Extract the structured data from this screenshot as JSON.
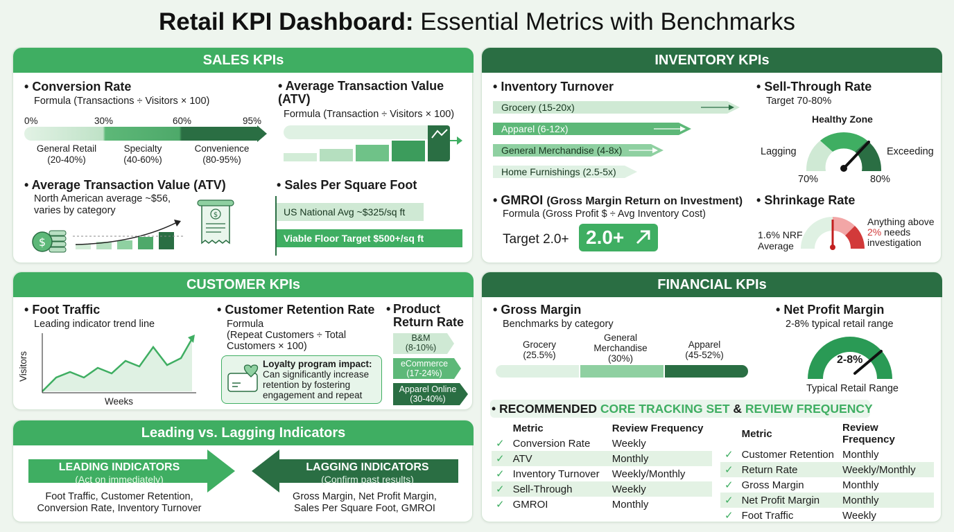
{
  "title": {
    "bold": "Retail KPI Dashboard:",
    "rest": "Essential Metrics with Benchmarks"
  },
  "sales": {
    "header": "SALES KPIs",
    "conversion": {
      "title": "Conversion Rate",
      "formula": "Formula (Transactions ÷ Visitors × 100)",
      "ticks": [
        "0%",
        "30%",
        "60%",
        "95%"
      ],
      "labels": [
        "General Retail\n(20-40%)",
        "Specialty\n(40-60%)",
        "Convenience\n(80-95%)"
      ]
    },
    "atv_formula": {
      "title": "Average Transaction Value (ATV)",
      "formula": "Formula (Transaction ÷ Visitors × 100)"
    },
    "atv": {
      "title": "Average Transaction Value (ATV)",
      "desc": "North American average ~$56, varies by category"
    },
    "spsf": {
      "title": "Sales Per Square Foot",
      "national": "US National Avg ~$325/sq ft",
      "viable": "Viable Floor Target $500+/sq ft"
    }
  },
  "inventory": {
    "header": "INVENTORY KPIs",
    "turnover": {
      "title": "Inventory Turnover",
      "items": [
        "Grocery (15-20x)",
        "Apparel (6-12x)",
        "General Merchandise (4-8x)",
        "Home Furnishings (2.5-5x)"
      ]
    },
    "sellthrough": {
      "title": "Sell-Through Rate",
      "target": "Target 70-80%",
      "zone": "Healthy Zone",
      "lagging": "Lagging",
      "exceeding": "Exceeding",
      "low": "70%",
      "high": "80%"
    },
    "gmroi": {
      "title": "GMROI",
      "title_rest": "(Gross Margin Return on Investment)",
      "formula": "Formula (Gross Profit $ ÷ Avg Inventory Cost)",
      "target": "Target 2.0+",
      "badge": "2.0+"
    },
    "shrinkage": {
      "title": "Shrinkage Rate",
      "left": "1.6% NRF\nAverage",
      "right_a": "Anything above",
      "right_b": "2%",
      "right_c": " needs\ninvestigation"
    }
  },
  "customer": {
    "header": "CUSTOMER KPIs",
    "foot": {
      "title": "Foot Traffic",
      "desc": "Leading indicator trend line",
      "ylabel": "Visitors",
      "xlabel": "Weeks"
    },
    "retention": {
      "title": "Customer Retention Rate",
      "formula": "Formula\n(Repeat Customers ÷ Total\nCustomers × 100)",
      "loyalty_title": "Loyalty program impact:",
      "loyalty_text": "Can significantly increase\nretention by fostering\nengagement and repeat"
    },
    "returns": {
      "title": "Product\nReturn Rate",
      "items": [
        "B&M\n(8-10%)",
        "eCommerce\n(17-24%)",
        "Apparel Online\n(30-40%)"
      ]
    }
  },
  "indicators": {
    "header": "Leading vs. Lagging Indicators",
    "leading_title": "LEADING INDICATORS",
    "leading_sub": "(Act on immediately)",
    "leading_list": "Foot Traffic, Customer Retention,\nConversion Rate, Inventory Turnover",
    "lagging_title": "LAGGING INDICATORS",
    "lagging_sub": "(Confirm past results)",
    "lagging_list": "Gross Margin, Net Profit Margin,\nSales Per Square Foot, GMROI"
  },
  "financial": {
    "header": "FINANCIAL KPIs",
    "gross": {
      "title": "Gross Margin",
      "desc": "Benchmarks by category",
      "labels": [
        "Grocery\n(25.5%)",
        "General\nMerchandise\n(30%)",
        "Apparel\n(45-52%)"
      ]
    },
    "net": {
      "title": "Net Profit Margin",
      "desc": "2-8% typical retail range",
      "gauge": "2-8%",
      "caption": "Typical Retail Range"
    },
    "tracking": {
      "title_a": "RECOMMENDED ",
      "title_b": "CORE TRACKING SET",
      "title_c": " & ",
      "title_d": "REVIEW FREQUENCY",
      "col_metric": "Metric",
      "col_freq": "Review Frequency",
      "left": [
        {
          "metric": "Conversion Rate",
          "freq": "Weekly"
        },
        {
          "metric": "ATV",
          "freq": "Monthly"
        },
        {
          "metric": "Inventory Turnover",
          "freq": "Weekly/Monthly"
        },
        {
          "metric": "Sell-Through",
          "freq": "Weekly"
        },
        {
          "metric": "GMROI",
          "freq": "Monthly"
        }
      ],
      "right": [
        {
          "metric": "Customer Retention",
          "freq": "Monthly"
        },
        {
          "metric": "Return Rate",
          "freq": "Weekly/Monthly"
        },
        {
          "metric": "Gross Margin",
          "freq": "Monthly"
        },
        {
          "metric": "Net Profit Margin",
          "freq": "Monthly"
        },
        {
          "metric": "Foot Traffic",
          "freq": "Weekly"
        }
      ]
    }
  },
  "colors": {
    "light_green": "#3fae62",
    "dark_green": "#2a6e43",
    "pale_green": "#cfe9d4",
    "red": "#d23a3a"
  }
}
